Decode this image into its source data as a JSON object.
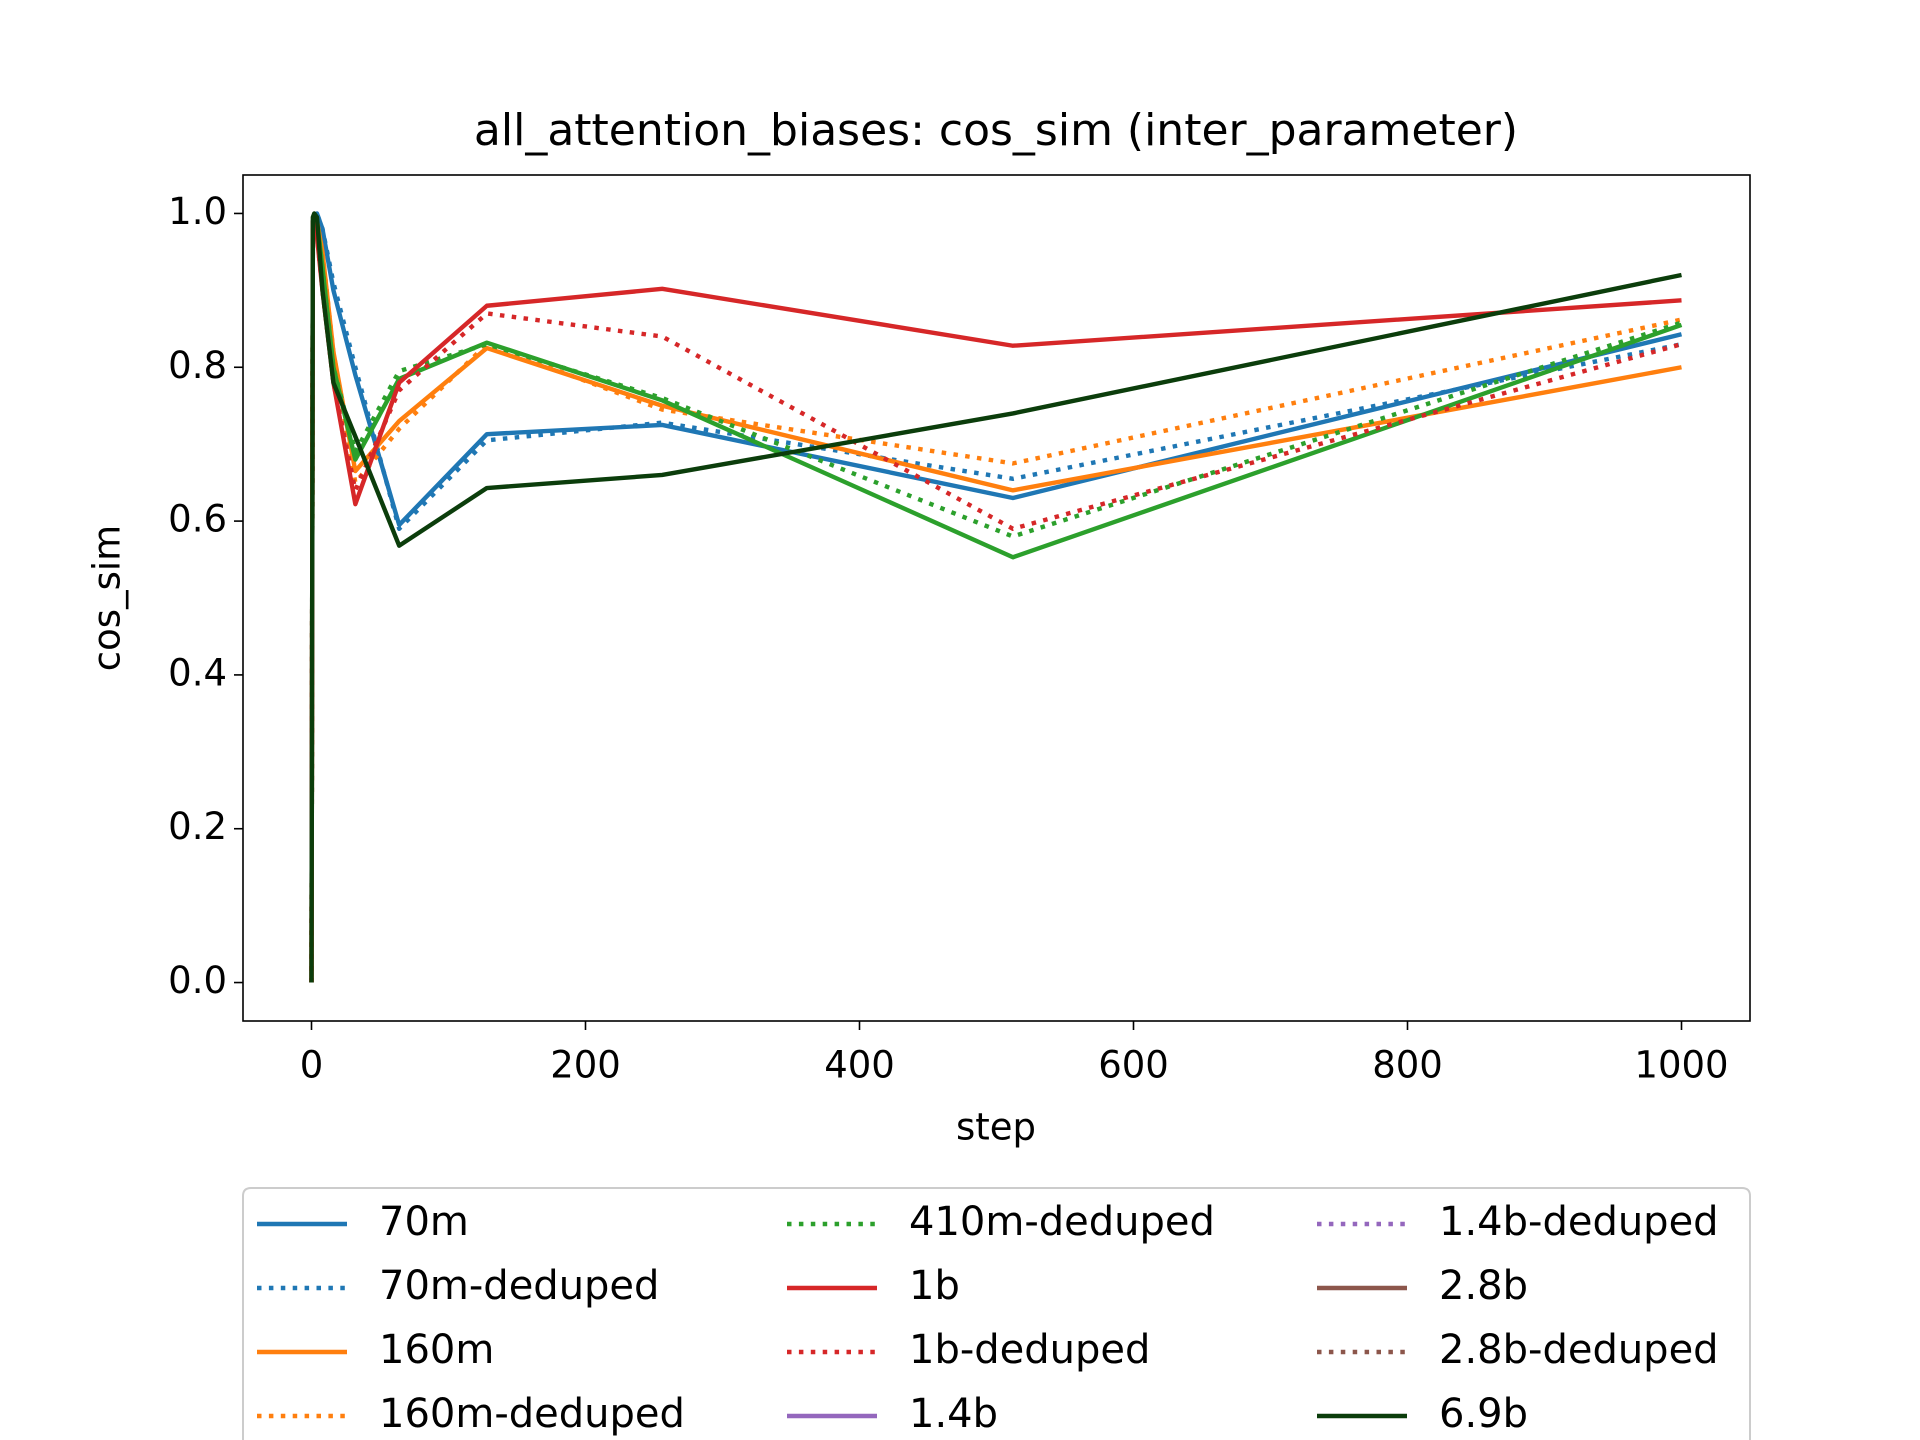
{
  "chart_data": {
    "type": "line",
    "title": "all_attention_biases: cos_sim (inter_parameter)",
    "x_label": "step",
    "y_label": "cos_sim",
    "x": [
      0,
      1,
      2,
      4,
      8,
      16,
      32,
      64,
      128,
      256,
      512,
      1000
    ],
    "xlim": [
      -50,
      1050
    ],
    "ylim": [
      -0.05,
      1.05
    ],
    "xticks": [
      0,
      200,
      400,
      600,
      800,
      1000
    ],
    "yticks": [
      {
        "value": 0,
        "label": "0.0"
      },
      {
        "value": 0.2,
        "label": "0.2"
      },
      {
        "value": 0.4,
        "label": "0.4"
      },
      {
        "value": 0.6,
        "label": "0.6"
      },
      {
        "value": 0.8,
        "label": "0.8"
      },
      {
        "value": 1,
        "label": "1.0"
      }
    ],
    "legend_position": "below",
    "legend_columns": 3,
    "series": [
      {
        "name": "70m",
        "color": "#1f77b4",
        "style": "solid",
        "values": [
          0,
          0.99,
          0.99,
          1.0,
          0.98,
          0.9,
          0.79,
          0.595,
          0.713,
          0.725,
          0.63,
          0.843
        ]
      },
      {
        "name": "70m-deduped",
        "color": "#1f77b4",
        "style": "dotted",
        "values": [
          0,
          0.99,
          0.99,
          1.0,
          0.98,
          0.91,
          0.8,
          0.59,
          0.705,
          0.728,
          0.655,
          0.83
        ]
      },
      {
        "name": "160m",
        "color": "#ff7f0e",
        "style": "solid",
        "values": [
          0,
          0.98,
          0.99,
          0.99,
          0.95,
          0.82,
          0.665,
          0.73,
          0.825,
          0.75,
          0.64,
          0.8
        ]
      },
      {
        "name": "160m-deduped",
        "color": "#ff7f0e",
        "style": "dotted",
        "values": [
          0,
          0.98,
          0.99,
          0.99,
          0.95,
          0.82,
          0.65,
          0.72,
          0.83,
          0.745,
          0.675,
          0.862
        ]
      },
      {
        "color": "#2ca02c",
        "style": "solid",
        "values": [
          0,
          0.99,
          0.99,
          0.99,
          0.93,
          0.8,
          0.68,
          0.785,
          0.832,
          0.757,
          0.553,
          0.855
        ]
      },
      {
        "name": "410m-deduped",
        "color": "#2ca02c",
        "style": "dotted",
        "values": [
          0,
          0.99,
          0.99,
          0.99,
          0.93,
          0.8,
          0.69,
          0.795,
          0.83,
          0.76,
          0.58,
          0.858
        ]
      },
      {
        "name": "1b",
        "color": "#d62728",
        "style": "solid",
        "values": [
          0,
          0.99,
          0.98,
          0.97,
          0.9,
          0.78,
          0.622,
          0.78,
          0.88,
          0.902,
          0.828,
          0.887
        ]
      },
      {
        "name": "1b-deduped",
        "color": "#d62728",
        "style": "dotted",
        "values": [
          0,
          0.99,
          0.98,
          0.97,
          0.9,
          0.78,
          0.64,
          0.77,
          0.87,
          0.84,
          0.59,
          0.83
        ]
      },
      {
        "name": "1.4b",
        "color": "#9467bd",
        "style": "solid"
      },
      {
        "name": "1.4b-deduped",
        "color": "#9467bd",
        "style": "dotted"
      },
      {
        "name": "2.8b",
        "color": "#8c564b",
        "style": "solid"
      },
      {
        "name": "2.8b-deduped",
        "color": "#8c564b",
        "style": "dotted"
      },
      {
        "name": "6.9b",
        "color": "#0b3d0b",
        "style": "solid",
        "values": [
          0,
          0.995,
          1.0,
          0.995,
          0.9,
          0.78,
          0.71,
          0.568,
          0.643,
          0.66,
          0.74,
          0.92
        ]
      }
    ]
  }
}
